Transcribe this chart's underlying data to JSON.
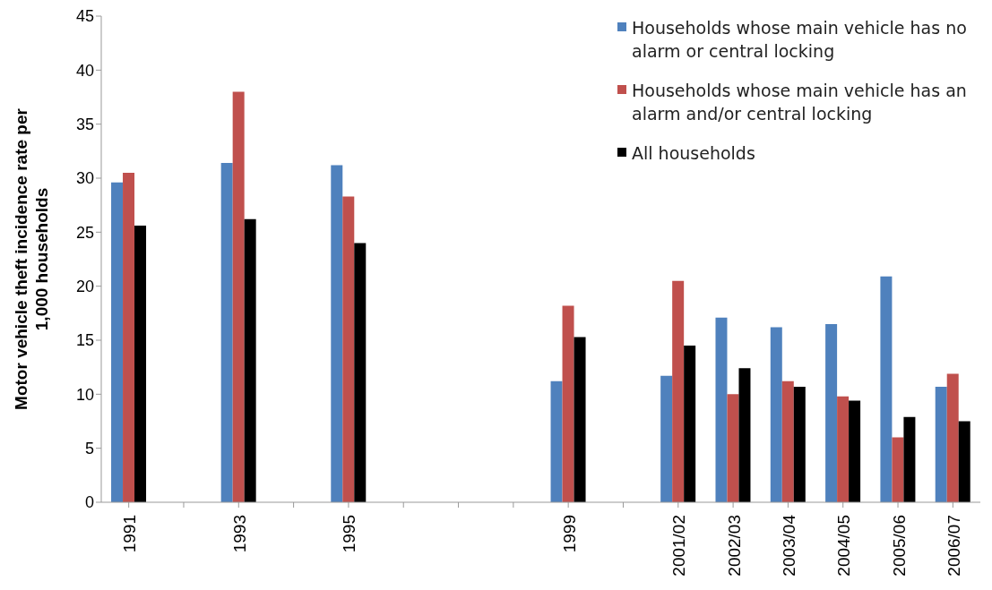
{
  "chart_data": {
    "type": "bar",
    "ylabel": "Motor vehicle theft incidence rate per 1,000 households",
    "categories": [
      "1991",
      null,
      "1993",
      null,
      "1995",
      null,
      null,
      null,
      "1999",
      null,
      "2001/02",
      "2002/03",
      "2003/04",
      "2004/05",
      "2005/06",
      "2006/07"
    ],
    "series": [
      {
        "name": "Households whose main vehicle has no alarm or central locking",
        "color": "#4f81bd",
        "values": [
          29.6,
          null,
          31.4,
          null,
          31.2,
          null,
          null,
          null,
          11.2,
          null,
          11.7,
          17.1,
          16.2,
          16.5,
          20.9,
          10.7
        ]
      },
      {
        "name": "Households whose main vehicle has an alarm and/or central locking",
        "color": "#c0504d",
        "values": [
          30.5,
          null,
          38,
          null,
          28.3,
          null,
          null,
          null,
          18.2,
          null,
          20.5,
          10,
          11.2,
          9.8,
          6,
          11.9
        ]
      },
      {
        "name": "All households",
        "color": "#000000",
        "values": [
          25.6,
          null,
          26.2,
          null,
          24,
          null,
          null,
          null,
          15.3,
          null,
          14.5,
          12.4,
          10.7,
          9.4,
          7.9,
          7.5
        ]
      }
    ],
    "ylim": [
      0,
      45
    ],
    "yticks": [
      0,
      5,
      10,
      15,
      20,
      25,
      30,
      35,
      40,
      45
    ],
    "grid": false,
    "legend": "top right"
  }
}
